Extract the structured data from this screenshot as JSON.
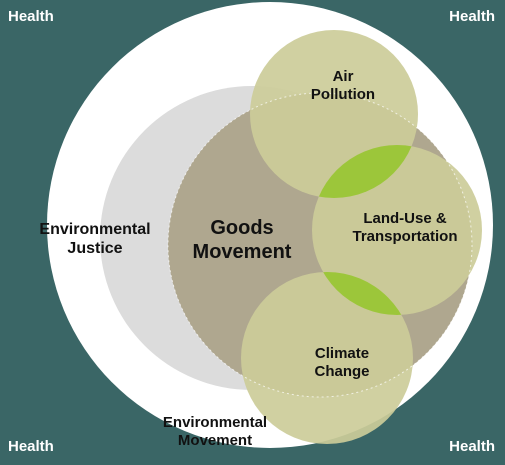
{
  "corners": {
    "top_left": "Health",
    "top_right": "Health",
    "bottom_left": "Health",
    "bottom_right": "Health"
  },
  "labels": {
    "environmental_justice": [
      "Environmental",
      "Justice"
    ],
    "goods_movement": [
      "Goods",
      "Movement"
    ],
    "air_pollution": [
      "Air",
      "Pollution"
    ],
    "land_use": [
      "Land-Use &",
      "Transportation"
    ],
    "climate_change": [
      "Climate",
      "Change"
    ],
    "environmental_movement": [
      "Environmental",
      "Movement"
    ]
  },
  "colors": {
    "background": "#3a6666",
    "outer_circle": "#ffffff",
    "justice_circle": "#dcdcdc",
    "goods_circle": "#afa78f",
    "topic_circles": "#cccc99",
    "overlap_green": "#9cc63a"
  }
}
